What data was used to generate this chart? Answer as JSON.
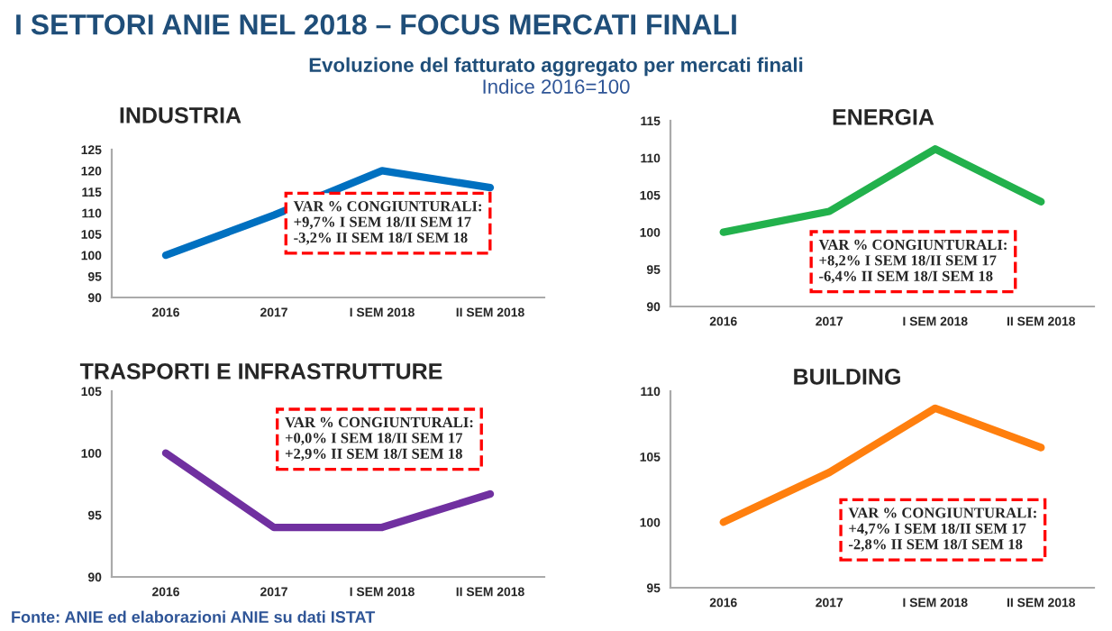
{
  "chart_data": [
    {
      "type": "line",
      "title": "INDUSTRIA",
      "categories": [
        "2016",
        "2017",
        "I SEM 2018",
        "II SEM 2018"
      ],
      "series": [
        {
          "color": "#0070c0",
          "values": [
            100,
            109.5,
            120,
            116
          ]
        }
      ],
      "ylim": [
        90,
        125
      ],
      "yticks": [
        90,
        95,
        100,
        105,
        110,
        115,
        120,
        125
      ],
      "grid": false,
      "legend": false,
      "annotations": [
        "I SETTORI ANIE NEL 2018 – FOCUS MERCATI FINALI",
        "Evoluzione del fatturato aggregato per mercati finali",
        "Indice 2016=100",
        "VAR % CONGIUNTURALI:\n+9,7% I SEM 18/II SEM 17\n-3,2% II SEM 18/I SEM 18"
      ]
    },
    {
      "type": "line",
      "title": "ENERGIA",
      "categories": [
        "2016",
        "2017",
        "I SEM 2018",
        "II SEM 2018"
      ],
      "series": [
        {
          "color": "#22b14c",
          "values": [
            100,
            102.8,
            111.2,
            104.1
          ]
        }
      ],
      "ylim": [
        90,
        115
      ],
      "yticks": [
        90,
        95,
        100,
        105,
        110,
        115
      ],
      "grid": false,
      "legend": false,
      "annotations": [
        "VAR % CONGIUNTURALI:\n+8,2% I SEM 18/II SEM 17\n-6,4% II SEM 18/I SEM 18"
      ]
    },
    {
      "type": "line",
      "title": "TRASPORTI E INFRASTRUTTURE",
      "categories": [
        "2016",
        "2017",
        "I SEM 2018",
        "II SEM 2018"
      ],
      "series": [
        {
          "color": "#7030a0",
          "values": [
            100,
            94,
            94,
            96.7
          ]
        }
      ],
      "ylim": [
        90,
        105
      ],
      "yticks": [
        90,
        95,
        100,
        105
      ],
      "grid": false,
      "legend": false,
      "annotations": [
        "VAR % CONGIUNTURALI:\n+0,0% I SEM 18/II SEM 17\n+2,9% II SEM 18/I SEM 18",
        "Fonte: ANIE ed elaborazioni ANIE su dati ISTAT"
      ]
    },
    {
      "type": "line",
      "title": "BUILDING",
      "categories": [
        "2016",
        "2017",
        "I SEM 2018",
        "II SEM 2018"
      ],
      "series": [
        {
          "color": "#ff7f0e",
          "values": [
            100,
            103.8,
            108.7,
            105.7
          ]
        }
      ],
      "ylim": [
        95,
        110
      ],
      "yticks": [
        95,
        100,
        105,
        110
      ],
      "grid": false,
      "legend": false,
      "annotations": [
        "VAR % CONGIUNTURALI:\n+4,7% I SEM 18/II SEM 17\n-2,8% II SEM 18/I SEM 18"
      ]
    }
  ]
}
